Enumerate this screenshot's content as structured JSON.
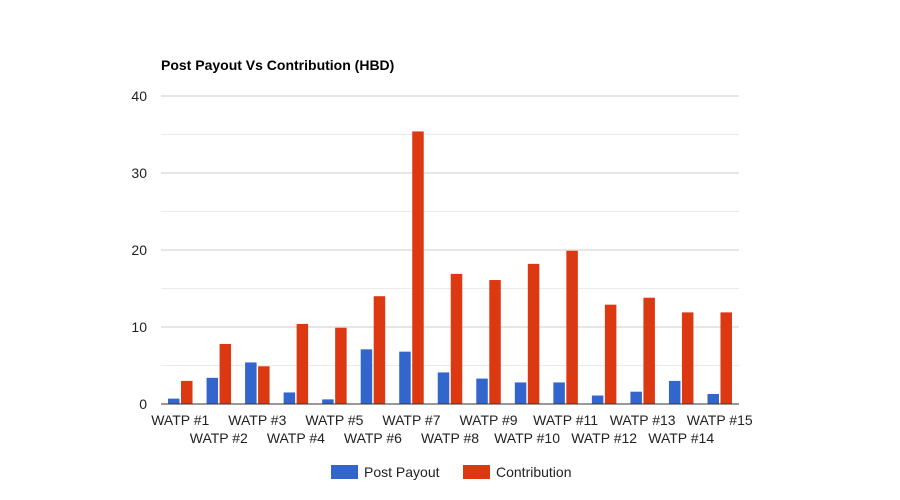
{
  "chart_data": {
    "type": "bar",
    "title": "Post Payout Vs Contribution (HBD)",
    "xlabel": "",
    "ylabel": "",
    "ylim": [
      0,
      40
    ],
    "yticks": [
      0,
      10,
      20,
      30,
      40
    ],
    "minor_grid": [
      5,
      15,
      25,
      35
    ],
    "grid": true,
    "legend_position": "bottom",
    "categories": [
      "WATP #1",
      "WATP #2",
      "WATP #3",
      "WATP #4",
      "WATP #5",
      "WATP #6",
      "WATP #7",
      "WATP #8",
      "WATP #9",
      "WATP #10",
      "WATP #11",
      "WATP #12",
      "WATP #13",
      "WATP #14",
      "WATP #15"
    ],
    "series": [
      {
        "name": "Post Payout",
        "color": "#3366cc",
        "values": [
          0.7,
          3.4,
          5.4,
          1.5,
          0.6,
          7.1,
          6.8,
          4.1,
          3.3,
          2.8,
          2.8,
          1.1,
          1.6,
          3.0,
          1.3
        ]
      },
      {
        "name": "Contribution",
        "color": "#dc3912",
        "values": [
          3.0,
          7.8,
          4.9,
          10.4,
          9.9,
          14.0,
          35.4,
          16.9,
          16.1,
          18.2,
          19.9,
          12.9,
          13.8,
          11.9,
          11.9
        ]
      }
    ]
  }
}
